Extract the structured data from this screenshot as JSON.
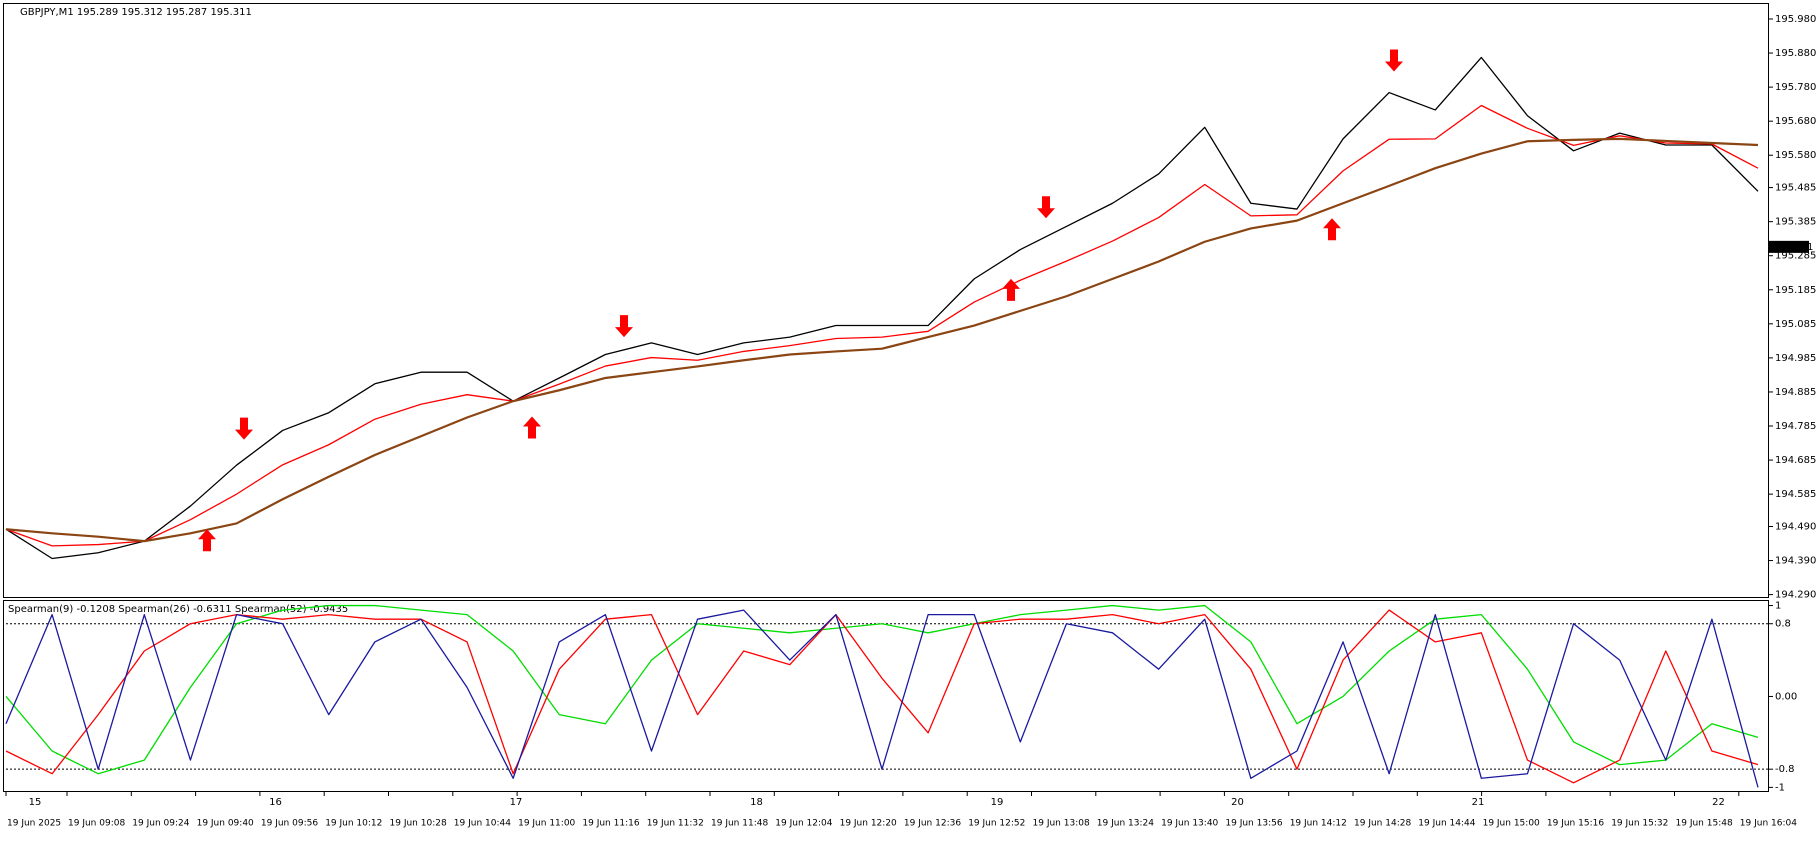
{
  "chart_data": [
    {
      "type": "line",
      "title": "GBPJPY,M1  195.289 195.312 195.287 195.311",
      "ylim": [
        194.283,
        196.024
      ],
      "yticks": [
        {
          "value": 195.98,
          "label": "195.980"
        },
        {
          "value": 195.88,
          "label": "195.880"
        },
        {
          "value": 195.78,
          "label": "195.780"
        },
        {
          "value": 195.68,
          "label": "195.680"
        },
        {
          "value": 195.58,
          "label": "195.580"
        },
        195.485,
        195.385,
        195.285,
        195.185,
        195.085,
        194.985,
        194.885,
        194.785,
        194.685,
        194.585,
        {
          "value": 194.49,
          "label": "194.490"
        },
        {
          "value": 194.39,
          "label": "194.390"
        },
        {
          "value": 194.29,
          "label": "194.290"
        }
      ],
      "last_price": 195.311,
      "series": [
        {
          "color": "#000000",
          "values": [
            194.482,
            194.396,
            194.413,
            194.447,
            194.55,
            194.67,
            194.772,
            194.824,
            194.909,
            194.943,
            194.943,
            194.858,
            194.926,
            194.995,
            195.029,
            194.995,
            195.029,
            195.046,
            195.08,
            195.08,
            195.08,
            195.217,
            195.303,
            195.371,
            195.439,
            195.525,
            195.662,
            195.439,
            195.422,
            195.628,
            195.764,
            195.713,
            195.867,
            195.696,
            195.593,
            195.645,
            195.61,
            195.61,
            195.474
          ]
        },
        {
          "color": "#ff0000",
          "values": [
            194.482,
            194.433,
            194.437,
            194.447,
            194.51,
            194.585,
            194.671,
            194.73,
            194.805,
            194.849,
            194.877,
            194.858,
            194.908,
            194.961,
            194.986,
            194.978,
            195.004,
            195.021,
            195.042,
            195.046,
            195.063,
            195.149,
            195.213,
            195.269,
            195.328,
            195.397,
            195.494,
            195.402,
            195.405,
            195.534,
            195.627,
            195.628,
            195.726,
            195.659,
            195.609,
            195.637,
            195.616,
            195.613,
            195.542
          ]
        },
        {
          "color": "#8b4513",
          "values": [
            194.482,
            194.47,
            194.46,
            194.447,
            194.47,
            194.499,
            194.57,
            194.636,
            194.7,
            194.755,
            194.81,
            194.858,
            194.89,
            194.926,
            194.943,
            194.96,
            194.978,
            194.995,
            195.004,
            195.012,
            195.046,
            195.08,
            195.123,
            195.166,
            195.217,
            195.268,
            195.326,
            195.365,
            195.388,
            195.439,
            195.49,
            195.542,
            195.585,
            195.621,
            195.625,
            195.628,
            195.622,
            195.616,
            195.61
          ]
        }
      ],
      "signals": [
        {
          "direction": "up",
          "value": 194.482
        },
        {
          "direction": "down",
          "value": 194.745
        },
        {
          "direction": "up",
          "value": 194.813
        },
        {
          "direction": "down",
          "value": 195.046
        },
        {
          "direction": "up",
          "value": 195.217
        },
        {
          "direction": "down",
          "value": 195.395
        },
        {
          "direction": "up",
          "value": 195.395
        },
        {
          "direction": "down",
          "value": 195.826
        }
      ]
    },
    {
      "type": "line",
      "title": "Spearman(9) -0.1208  Spearman(26) -0.6311  Spearman(52) -0.9435",
      "ylim": [
        -1.04,
        1.05
      ],
      "yticks": [
        1,
        0.8,
        {
          "value": 0,
          "label": "0.00"
        },
        -0.8,
        -1
      ],
      "levels": [
        0.8,
        -0.8
      ],
      "series": [
        {
          "color": "#00dd00",
          "values": [
            0,
            -0.6,
            -0.85,
            -0.7,
            0.1,
            0.8,
            0.95,
            1,
            1,
            0.95,
            0.9,
            0.5,
            -0.2,
            -0.3,
            0.4,
            0.8,
            0.75,
            0.7,
            0.75,
            0.8,
            0.7,
            0.8,
            0.9,
            0.95,
            1,
            0.95,
            1,
            0.6,
            -0.3,
            0,
            0.5,
            0.85,
            0.9,
            0.3,
            -0.5,
            -0.75,
            -0.7,
            -0.3,
            -0.45
          ]
        },
        {
          "color": "#ff0000",
          "values": [
            -0.6,
            -0.85,
            -0.2,
            0.5,
            0.8,
            0.9,
            0.85,
            0.9,
            0.85,
            0.85,
            0.6,
            -0.85,
            0.3,
            0.85,
            0.9,
            -0.2,
            0.5,
            0.35,
            0.9,
            0.2,
            -0.4,
            0.8,
            0.85,
            0.85,
            0.9,
            0.8,
            0.9,
            0.3,
            -0.8,
            0.4,
            0.95,
            0.6,
            0.7,
            -0.7,
            -0.95,
            -0.7,
            0.5,
            -0.6,
            -0.75
          ]
        },
        {
          "color": "#1a1aa0",
          "values": [
            -0.3,
            0.9,
            -0.8,
            0.9,
            -0.7,
            0.9,
            0.8,
            -0.2,
            0.6,
            0.85,
            0.1,
            -0.9,
            0.6,
            0.9,
            -0.6,
            0.85,
            0.95,
            0.4,
            0.9,
            -0.8,
            0.9,
            0.9,
            -0.5,
            0.8,
            0.7,
            0.3,
            0.85,
            -0.9,
            -0.6,
            0.6,
            -0.85,
            0.9,
            -0.9,
            -0.85,
            0.8,
            0.4,
            -0.7,
            0.85,
            -1
          ]
        }
      ],
      "day_labels": [
        "15",
        "16",
        "17",
        "18",
        "19",
        "20",
        "21",
        "22"
      ],
      "x_labels": [
        "19 Jun 2025",
        "19 Jun 09:08",
        "19 Jun 09:24",
        "19 Jun 09:40",
        "19 Jun 09:56",
        "19 Jun 10:12",
        "19 Jun 10:28",
        "19 Jun 10:44",
        "19 Jun 11:00",
        "19 Jun 11:16",
        "19 Jun 11:32",
        "19 Jun 11:48",
        "19 Jun 12:04",
        "19 Jun 12:20",
        "19 Jun 12:36",
        "19 Jun 12:52",
        "19 Jun 13:08",
        "19 Jun 13:24",
        "19 Jun 13:40",
        "19 Jun 13:56",
        "19 Jun 14:12",
        "19 Jun 14:28",
        "19 Jun 14:44",
        "19 Jun 15:00",
        "19 Jun 15:16",
        "19 Jun 15:32",
        "19 Jun 15:48",
        "19 Jun 16:04"
      ]
    }
  ]
}
